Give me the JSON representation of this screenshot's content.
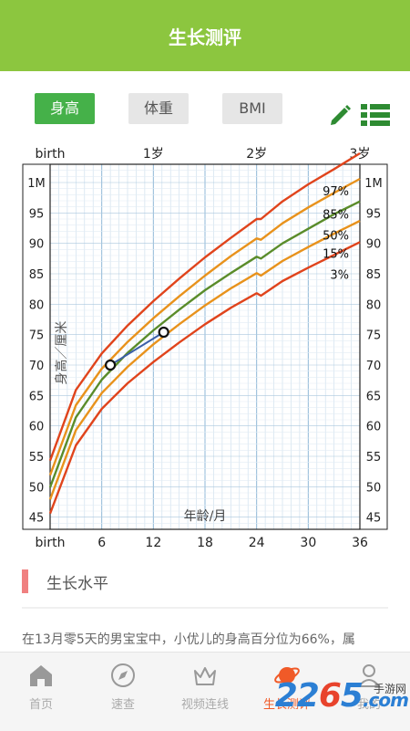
{
  "header": {
    "title": "生长测评"
  },
  "tabs": [
    {
      "label": "身高",
      "active": true
    },
    {
      "label": "体重",
      "active": false
    },
    {
      "label": "BMI",
      "active": false
    }
  ],
  "toolbar": {
    "edit_icon": "pencil-icon",
    "list_icon": "list-icon"
  },
  "chart_data": {
    "type": "line",
    "top_ticks": [
      "birth",
      "1岁",
      "2岁",
      "3岁"
    ],
    "top_tick_months": [
      0,
      12,
      24,
      36
    ],
    "x_ticks": [
      "birth",
      "6",
      "12",
      "18",
      "24",
      "30",
      "36"
    ],
    "x_tick_values": [
      0,
      6,
      12,
      18,
      24,
      30,
      36
    ],
    "xlabel": "年龄/月",
    "ylabel": "身高／厘米",
    "y_ticks": [
      "45",
      "50",
      "55",
      "60",
      "65",
      "70",
      "75",
      "80",
      "85",
      "90",
      "95",
      "1M"
    ],
    "y_tick_values": [
      45,
      50,
      55,
      60,
      65,
      70,
      75,
      80,
      85,
      90,
      95,
      100
    ],
    "xlim": [
      0,
      36
    ],
    "ylim": [
      43,
      103
    ],
    "grid": true,
    "series": [
      {
        "name": "97%",
        "color": "#e0441c",
        "x": [
          0,
          3,
          6,
          9,
          12,
          15,
          18,
          21,
          24,
          24.5,
          27,
          30,
          33,
          36
        ],
        "y": [
          54.3,
          65.9,
          71.9,
          76.5,
          80.5,
          84.2,
          87.7,
          90.9,
          94.0,
          94.0,
          96.9,
          99.7,
          102.2,
          104.8
        ]
      },
      {
        "name": "85%",
        "color": "#e8921c",
        "x": [
          0,
          3,
          6,
          9,
          12,
          15,
          18,
          21,
          24,
          24.5,
          27,
          30,
          33,
          36
        ],
        "y": [
          51.9,
          63.4,
          69.4,
          73.8,
          77.7,
          81.3,
          84.7,
          87.9,
          90.8,
          90.6,
          93.3,
          95.9,
          98.3,
          100.6
        ]
      },
      {
        "name": "50%",
        "color": "#5a8c2a",
        "x": [
          0,
          3,
          6,
          9,
          12,
          15,
          18,
          21,
          24,
          24.5,
          27,
          30,
          33,
          36
        ],
        "y": [
          49.9,
          61.4,
          67.6,
          72.0,
          75.7,
          79.1,
          82.3,
          85.1,
          87.8,
          87.5,
          90.0,
          92.4,
          94.8,
          96.9
        ]
      },
      {
        "name": "15%",
        "color": "#e8921c",
        "x": [
          0,
          3,
          6,
          9,
          12,
          15,
          18,
          21,
          24,
          24.5,
          27,
          30,
          33,
          36
        ],
        "y": [
          47.9,
          59.3,
          65.4,
          69.7,
          73.4,
          76.7,
          79.8,
          82.6,
          85.1,
          84.7,
          87.1,
          89.4,
          91.6,
          93.7
        ]
      },
      {
        "name": "3%",
        "color": "#e0441c",
        "x": [
          0,
          3,
          6,
          9,
          12,
          15,
          18,
          21,
          24,
          24.5,
          27,
          30,
          33,
          36
        ],
        "y": [
          45.6,
          56.8,
          62.8,
          67.0,
          70.5,
          73.7,
          76.7,
          79.4,
          81.8,
          81.4,
          83.8,
          86.0,
          88.1,
          90.2
        ]
      }
    ],
    "child": {
      "color": "#3b5fa8",
      "x": [
        7,
        13.2
      ],
      "y": [
        70.0,
        75.4
      ]
    }
  },
  "section": {
    "title": "生长水平"
  },
  "description": "在13月零5天的男宝宝中，小优儿的身高百分位为66%，属",
  "bottom_nav": [
    {
      "label": "首页",
      "icon": "home-icon",
      "active": false
    },
    {
      "label": "速查",
      "icon": "compass-icon",
      "active": false
    },
    {
      "label": "视频连线",
      "icon": "crown-icon",
      "active": false
    },
    {
      "label": "生长测评",
      "icon": "planet-icon",
      "active": true
    },
    {
      "label": "我的",
      "icon": "user-icon",
      "active": false
    }
  ],
  "watermark": {
    "logo": "2265.com",
    "site": "手游网"
  }
}
